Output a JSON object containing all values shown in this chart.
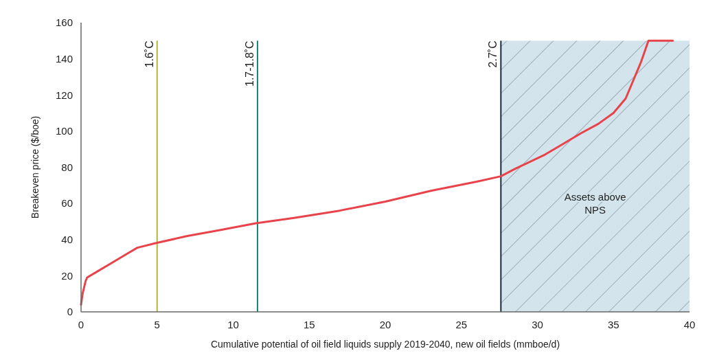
{
  "chart_data": {
    "type": "line",
    "xlabel": "Cumulative potential of oil field liquids supply 2019-2040, new oil fields (mmboe/d)",
    "ylabel": "Breakeven price ($/boe)",
    "x": [
      0,
      0.1,
      0.3,
      0.4,
      1,
      2,
      3,
      3.7,
      4.9,
      7,
      9,
      11.5,
      14,
      17,
      20,
      23,
      26,
      27.6,
      28.5,
      30,
      30.5,
      31.5,
      32.9,
      34,
      35,
      35.8,
      36.2,
      36.8,
      37.3,
      38,
      38.9
    ],
    "series": [
      {
        "color": "#e8434a",
        "values": [
          4,
          10,
          17,
          19,
          22,
          27,
          32,
          35.5,
          38,
          42,
          45,
          49,
          52,
          56,
          61,
          67,
          72,
          75,
          79,
          85,
          87,
          92,
          99,
          104,
          110,
          118,
          126,
          138,
          150,
          150,
          150
        ]
      }
    ],
    "xlim": [
      0,
      40
    ],
    "xticks": [
      0,
      5,
      10,
      15,
      20,
      25,
      30,
      35,
      40
    ],
    "ylim": [
      0,
      160
    ],
    "yticks": [
      0,
      20,
      40,
      60,
      80,
      100,
      120,
      140,
      160
    ],
    "grid": false,
    "line_style": "solid",
    "ref_lines": [
      {
        "axis": "x",
        "value": 5,
        "label": "1.6˚C",
        "color": "#b3b43c"
      },
      {
        "axis": "x",
        "value": 11.6,
        "label": "1.7-1.8˚C",
        "color": "#16807f"
      },
      {
        "axis": "x",
        "value": 27.6,
        "label": "2.7˚C",
        "color": "#1b2a38"
      }
    ],
    "bands": [
      {
        "axis": "x",
        "from": 27.6,
        "to": 40,
        "label": "Assets above NPS",
        "color": "#d3e4ec"
      }
    ]
  }
}
